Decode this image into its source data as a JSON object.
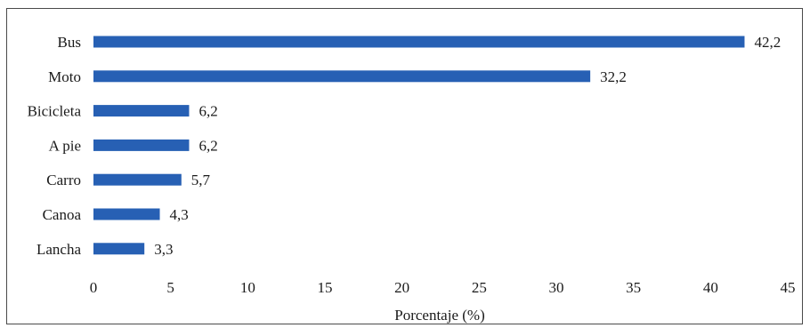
{
  "chart_data": {
    "type": "bar",
    "orientation": "horizontal",
    "categories": [
      "Bus",
      "Moto",
      "Bicicleta",
      "A pie",
      "Carro",
      "Canoa",
      "Lancha"
    ],
    "values": [
      42.2,
      32.2,
      6.2,
      6.2,
      5.7,
      4.3,
      3.3
    ],
    "value_labels": [
      "42,2",
      "32,2",
      "6,2",
      "6,2",
      "5,7",
      "4,3",
      "3,3"
    ],
    "title": "",
    "xlabel": "Porcentaje (%)",
    "ylabel": "",
    "xlim": [
      0,
      45
    ],
    "xticks": [
      0,
      5,
      10,
      15,
      20,
      25,
      30,
      35,
      40,
      45
    ],
    "grid": false,
    "legend": "none",
    "bar_color": "#2760b4"
  }
}
